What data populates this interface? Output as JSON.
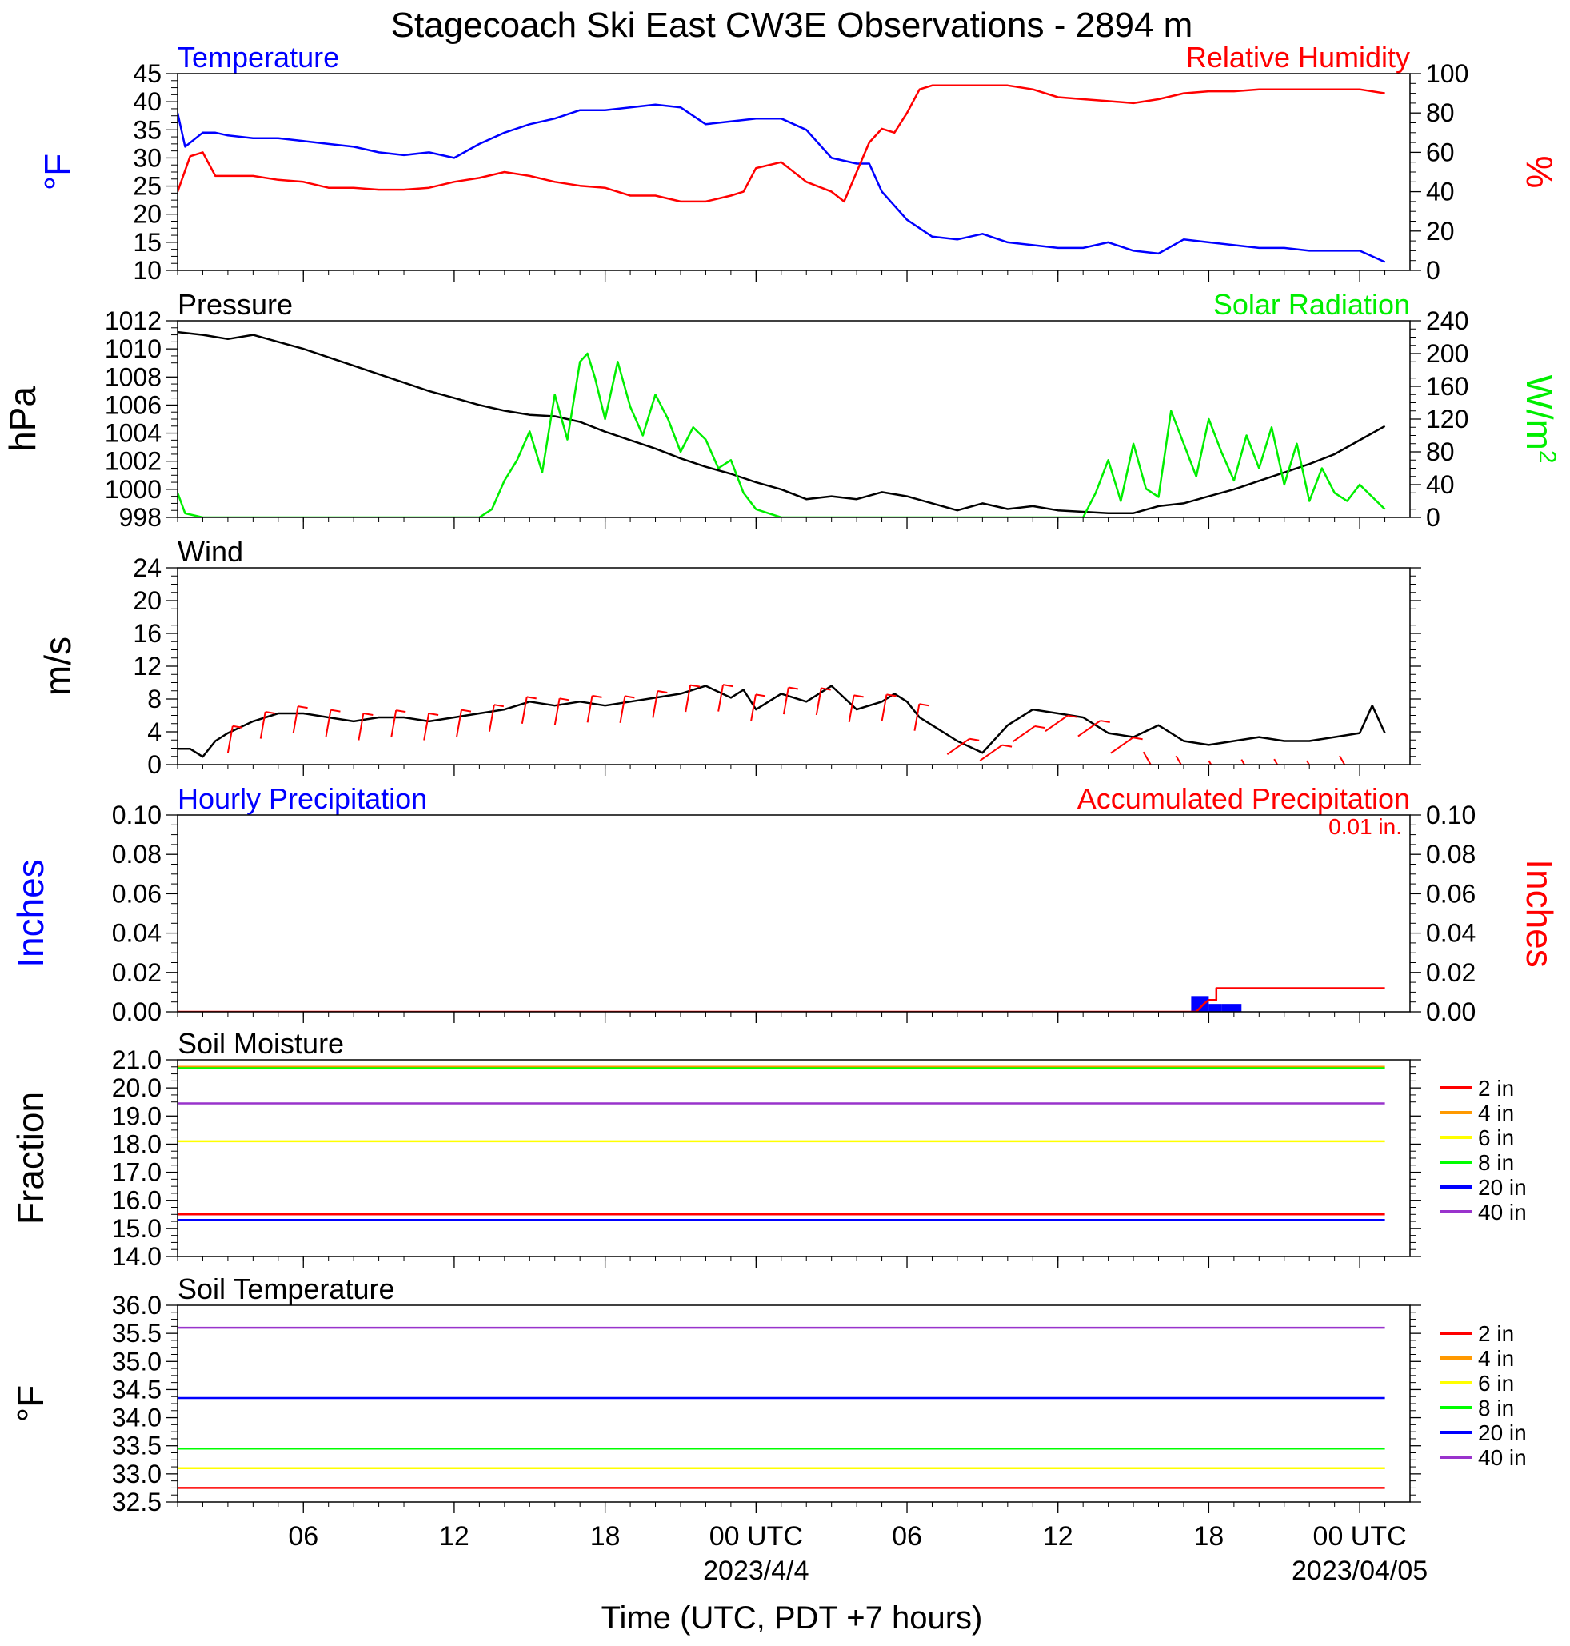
{
  "page": {
    "title": "Stagecoach Ski East CW3E Observations - 2894 m",
    "xlabel": "Time (UTC, PDT +7 hours)"
  },
  "x_axis": {
    "range_hours": [
      0,
      49
    ],
    "ticks": [
      {
        "hours": 5,
        "label": "06",
        "date": ""
      },
      {
        "hours": 11,
        "label": "12",
        "date": ""
      },
      {
        "hours": 17,
        "label": "18",
        "date": ""
      },
      {
        "hours": 23,
        "label": "00 UTC",
        "date": "2023/4/4"
      },
      {
        "hours": 29,
        "label": "06",
        "date": ""
      },
      {
        "hours": 35,
        "label": "12",
        "date": ""
      },
      {
        "hours": 41,
        "label": "18",
        "date": ""
      },
      {
        "hours": 47,
        "label": "00 UTC",
        "date": "2023/04/05"
      }
    ]
  },
  "colors": {
    "temperature": "#0000ff",
    "relative_humidity": "#ff0000",
    "pressure": "#000000",
    "solar": "#00ee00",
    "wind": "#000000",
    "wind_barbs": "#ff0000",
    "hourly_precip": "#0000ff",
    "accum_precip": "#ff0000",
    "soil_2in": "#ff0000",
    "soil_4in": "#ff9900",
    "soil_6in": "#ffff00",
    "soil_8in": "#00ff00",
    "soil_20in": "#0000ff",
    "soil_40in": "#9933cc"
  },
  "chart_data": [
    {
      "type": "line",
      "panel": "temperature-humidity",
      "title_left": "Temperature",
      "title_right": "Relative Humidity",
      "ylabel_left": "°F",
      "ylabel_right": "%",
      "ylim_left": [
        10,
        45
      ],
      "yticks_left": [
        "45",
        "40",
        "35",
        "30",
        "25",
        "20",
        "15",
        "10"
      ],
      "ylim_right": [
        0,
        100
      ],
      "yticks_right": [
        "100",
        "80",
        "60",
        "40",
        "20",
        "0"
      ],
      "series": [
        {
          "name": "Temperature",
          "axis": "left",
          "x": [
            0,
            0.3,
            1,
            1.5,
            2,
            3,
            4,
            5,
            6,
            7,
            8,
            9,
            10,
            11,
            12,
            13,
            14,
            15,
            16,
            16.5,
            17,
            18,
            19,
            20,
            21,
            22,
            23,
            24,
            25,
            26,
            27,
            27.5,
            28,
            29,
            30,
            31,
            32,
            33,
            34,
            35,
            36,
            37,
            38,
            39,
            40,
            41,
            42,
            43,
            44,
            45,
            46,
            47,
            47.5,
            48
          ],
          "y": [
            38,
            32,
            34.5,
            34.5,
            34,
            33.5,
            33.5,
            33,
            32.5,
            32,
            31,
            30.5,
            31,
            30,
            32.5,
            34.5,
            36,
            37,
            38.5,
            38.5,
            38.5,
            39,
            39.5,
            39,
            36,
            36.5,
            37,
            37,
            35,
            30,
            29,
            29,
            24,
            19,
            16,
            15.5,
            16.5,
            15,
            14.5,
            14,
            14,
            15,
            13.5,
            13,
            15.5,
            15,
            14.5,
            14,
            14,
            13.5,
            13.5,
            13.5,
            12.5,
            11.5
          ]
        },
        {
          "name": "Relative Humidity",
          "axis": "right",
          "x": [
            0,
            0.5,
            1,
            1.5,
            2,
            3,
            4,
            5,
            6,
            7,
            8,
            9,
            10,
            11,
            12,
            13,
            14,
            15,
            16,
            17,
            18,
            19,
            20,
            21,
            22,
            22.5,
            23,
            24,
            25,
            26,
            26.5,
            27,
            27.5,
            28,
            28.5,
            29,
            29.5,
            30,
            31,
            32,
            33,
            34,
            35,
            36,
            37,
            38,
            39,
            40,
            41,
            42,
            43,
            44,
            45,
            46,
            47,
            48
          ],
          "y": [
            40,
            58,
            60,
            48,
            48,
            48,
            46,
            45,
            42,
            42,
            41,
            41,
            42,
            45,
            47,
            50,
            48,
            45,
            43,
            42,
            38,
            38,
            35,
            35,
            38,
            40,
            52,
            55,
            45,
            40,
            35,
            50,
            65,
            72,
            70,
            80,
            92,
            94,
            94,
            94,
            94,
            92,
            88,
            87,
            86,
            85,
            87,
            90,
            91,
            91,
            92,
            92,
            92,
            92,
            92,
            90
          ]
        }
      ]
    },
    {
      "type": "line",
      "panel": "pressure-solar",
      "title_left": "Pressure",
      "title_right": "Solar Radiation",
      "ylabel_left": "hPa",
      "ylabel_right": "W/m",
      "ylabel_right_sup": "2",
      "ylim_left": [
        998,
        1012
      ],
      "yticks_left": [
        "1012",
        "1010",
        "1008",
        "1006",
        "1004",
        "1002",
        "1000",
        "998"
      ],
      "ylim_right": [
        0,
        240
      ],
      "yticks_right": [
        "240",
        "200",
        "160",
        "120",
        "80",
        "40",
        "0"
      ],
      "series": [
        {
          "name": "Pressure",
          "axis": "left",
          "x": [
            0,
            1,
            2,
            3,
            4,
            5,
            6,
            7,
            8,
            9,
            10,
            11,
            12,
            13,
            14,
            15,
            16,
            17,
            18,
            19,
            20,
            21,
            22,
            23,
            24,
            25,
            26,
            27,
            28,
            29,
            30,
            31,
            32,
            33,
            34,
            35,
            36,
            37,
            38,
            39,
            40,
            41,
            42,
            43,
            44,
            45,
            46,
            47,
            48
          ],
          "y": [
            1011.2,
            1011,
            1010.7,
            1011,
            1010.5,
            1010,
            1009.4,
            1008.8,
            1008.2,
            1007.6,
            1007,
            1006.5,
            1006,
            1005.6,
            1005.3,
            1005.2,
            1004.8,
            1004.1,
            1003.5,
            1002.9,
            1002.2,
            1001.6,
            1001.1,
            1000.5,
            1000,
            999.3,
            999.5,
            999.3,
            999.8,
            999.5,
            999,
            998.5,
            999,
            998.6,
            998.8,
            998.5,
            998.4,
            998.3,
            998.3,
            998.8,
            999,
            999.5,
            1000,
            1000.6,
            1001.2,
            1001.8,
            1002.5,
            1003.5,
            1004.5
          ]
        },
        {
          "name": "Solar Radiation",
          "axis": "right",
          "x": [
            0,
            0.3,
            1,
            12,
            12.5,
            13,
            13.5,
            14,
            14.5,
            15,
            15.5,
            16,
            16.3,
            16.6,
            17,
            17.5,
            18,
            18.5,
            19,
            19.5,
            20,
            20.5,
            21,
            21.5,
            22,
            22.5,
            23,
            23.5,
            24,
            36,
            36.5,
            37,
            37.5,
            38,
            38.5,
            39,
            39.5,
            40,
            40.5,
            41,
            41.5,
            42,
            42.5,
            43,
            43.5,
            44,
            44.5,
            45,
            45.5,
            46,
            46.5,
            47,
            47.5,
            48
          ],
          "y": [
            30,
            5,
            0,
            0,
            10,
            45,
            70,
            105,
            55,
            150,
            95,
            190,
            200,
            170,
            120,
            190,
            135,
            100,
            150,
            120,
            80,
            110,
            95,
            60,
            70,
            30,
            10,
            5,
            0,
            0,
            30,
            70,
            20,
            90,
            35,
            25,
            130,
            90,
            50,
            120,
            80,
            45,
            100,
            60,
            110,
            40,
            90,
            20,
            60,
            30,
            20,
            40,
            25,
            10
          ]
        }
      ]
    },
    {
      "type": "line",
      "panel": "wind",
      "title_left": "Wind",
      "ylabel_left": "m/s",
      "ylim_left": [
        0,
        25
      ],
      "yticks_left": [
        "24",
        "20",
        "16",
        "12",
        "8",
        "4",
        "0"
      ],
      "series": [
        {
          "name": "Wind",
          "axis": "left",
          "x": [
            0,
            0.5,
            1,
            1.5,
            2,
            3,
            4,
            5,
            6,
            7,
            8,
            9,
            10,
            11,
            12,
            13,
            14,
            15,
            16,
            17,
            18,
            19,
            20,
            21,
            22,
            22.5,
            23,
            24,
            25,
            26,
            27,
            28,
            28.5,
            29,
            29.5,
            30,
            31,
            32,
            33,
            34,
            35,
            36,
            37,
            38,
            39,
            40,
            41,
            42,
            43,
            44,
            45,
            46,
            47,
            47.5,
            48
          ],
          "y": [
            2,
            2,
            1,
            3,
            4,
            5.5,
            6.5,
            6.5,
            6,
            5.5,
            6,
            6,
            5.5,
            6,
            6.5,
            7,
            8,
            7.5,
            8,
            7.5,
            8,
            8.5,
            9,
            10,
            8.5,
            9.5,
            7,
            9,
            8,
            10,
            7,
            8,
            9,
            8,
            6,
            5,
            3,
            1.5,
            5,
            7,
            6.5,
            6,
            4,
            3.5,
            5,
            3,
            2.5,
            3,
            3.5,
            3,
            3,
            3.5,
            4,
            7.5,
            4
          ]
        }
      ]
    },
    {
      "type": "line",
      "panel": "precipitation",
      "title_left": "Hourly Precipitation",
      "title_right": "Accumulated Precipitation",
      "annotation": "0.01 in.",
      "ylabel_left": "Inches",
      "ylabel_right": "Inches",
      "ylim_left": [
        0,
        0.1
      ],
      "yticks_left": [
        "0.10",
        "0.08",
        "0.06",
        "0.04",
        "0.02",
        "0.00"
      ],
      "ylim_right": [
        0,
        0.1
      ],
      "yticks_right": [
        "0.10",
        "0.08",
        "0.06",
        "0.04",
        "0.02",
        "0.00"
      ],
      "series": [
        {
          "name": "Hourly Precipitation",
          "axis": "left",
          "bars": [
            {
              "x0": 40.3,
              "x1": 41.0,
              "value": 0.008
            },
            {
              "x0": 41.0,
              "x1": 41.5,
              "value": 0.004
            },
            {
              "x0": 41.5,
              "x1": 42.3,
              "value": 0.004
            }
          ]
        },
        {
          "name": "Accumulated Precipitation",
          "axis": "right",
          "x": [
            0,
            40.5,
            40.8,
            41.0,
            41.3,
            41.3,
            48
          ],
          "y": [
            0,
            0,
            0.004,
            0.006,
            0.006,
            0.012,
            0.012
          ]
        }
      ]
    },
    {
      "type": "line",
      "panel": "soil-moisture",
      "title_left": "Soil Moisture",
      "ylabel_left": "Fraction",
      "ylim_left": [
        14,
        21
      ],
      "yticks_left": [
        "21.0",
        "20.0",
        "19.0",
        "18.0",
        "17.0",
        "16.0",
        "15.0",
        "14.0"
      ],
      "legend": [
        "2 in",
        "4 in",
        "6 in",
        "8 in",
        "20 in",
        "40 in"
      ],
      "series": [
        {
          "name": "2 in",
          "axis": "left",
          "x": [
            0,
            48
          ],
          "y": [
            15.5,
            15.5
          ]
        },
        {
          "name": "4 in",
          "axis": "left",
          "x": [
            0,
            48
          ],
          "y": [
            20.75,
            20.75
          ]
        },
        {
          "name": "6 in",
          "axis": "left",
          "x": [
            0,
            48
          ],
          "y": [
            18.1,
            18.1
          ]
        },
        {
          "name": "8 in",
          "axis": "left",
          "x": [
            0,
            48
          ],
          "y": [
            20.7,
            20.7
          ]
        },
        {
          "name": "20 in",
          "axis": "left",
          "x": [
            0,
            48
          ],
          "y": [
            15.3,
            15.3
          ]
        },
        {
          "name": "40 in",
          "axis": "left",
          "x": [
            0,
            48
          ],
          "y": [
            19.45,
            19.45
          ]
        }
      ]
    },
    {
      "type": "line",
      "panel": "soil-temperature",
      "title_left": "Soil Temperature",
      "ylabel_left": "°F",
      "ylim_left": [
        32.5,
        36
      ],
      "yticks_left": [
        "36.0",
        "35.5",
        "35.0",
        "34.5",
        "34.0",
        "33.5",
        "33.0",
        "32.5"
      ],
      "legend": [
        "2 in",
        "4 in",
        "6 in",
        "8 in",
        "20 in",
        "40 in"
      ],
      "series": [
        {
          "name": "2 in",
          "axis": "left",
          "x": [
            0,
            48
          ],
          "y": [
            32.75,
            32.75
          ]
        },
        {
          "name": "4 in",
          "axis": "left",
          "x": [
            0,
            48
          ],
          "y": [
            33.1,
            33.1
          ]
        },
        {
          "name": "6 in",
          "axis": "left",
          "x": [
            0,
            48
          ],
          "y": [
            33.1,
            33.1
          ]
        },
        {
          "name": "8 in",
          "axis": "left",
          "x": [
            0,
            48
          ],
          "y": [
            33.45,
            33.45
          ]
        },
        {
          "name": "20 in",
          "axis": "left",
          "x": [
            0,
            48
          ],
          "y": [
            34.35,
            34.35
          ]
        },
        {
          "name": "40 in",
          "axis": "left",
          "x": [
            0,
            48
          ],
          "y": [
            35.6,
            35.6
          ]
        }
      ]
    }
  ]
}
